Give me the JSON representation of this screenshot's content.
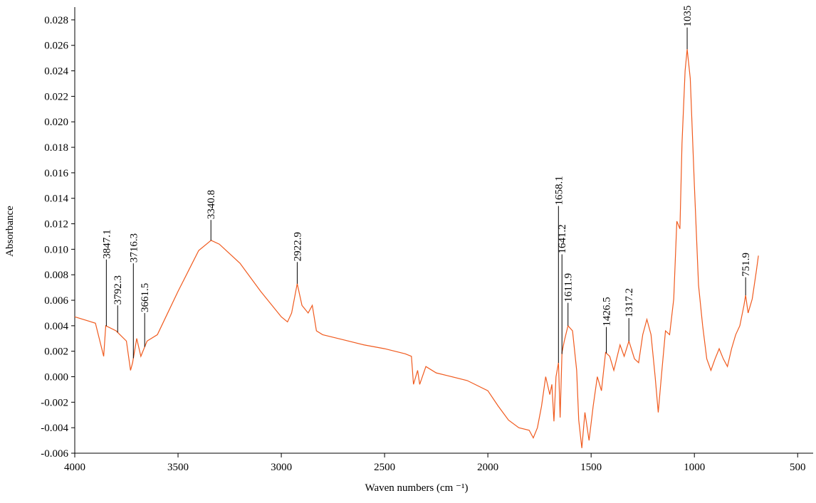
{
  "chart_data": {
    "type": "line",
    "xlabel": "Waven numbers (cm ⁻¹)",
    "ylabel": "Absorbance",
    "xlim": [
      4000,
      425
    ],
    "ylim": [
      -0.006,
      0.029
    ],
    "xticks": [
      4000,
      3500,
      3000,
      2500,
      2000,
      1500,
      1000,
      500
    ],
    "yticks": [
      -0.006,
      -0.004,
      -0.002,
      {
        "value": 0,
        "label": "0.000"
      },
      0.002,
      0.004,
      0.006,
      0.008,
      {
        "value": 0.01,
        "label": "0.010"
      },
      0.012,
      0.014,
      0.016,
      0.018,
      {
        "value": 0.02,
        "label": "0.020"
      },
      0.022,
      0.024,
      0.026,
      0.028
    ],
    "series": [
      {
        "color": "#f05a1e",
        "x": [
          4000,
          3900,
          3860,
          3850,
          3800,
          3750,
          3730,
          3720,
          3700,
          3680,
          3650,
          3600,
          3550,
          3500,
          3450,
          3400,
          3340,
          3300,
          3200,
          3100,
          3000,
          2970,
          2950,
          2923,
          2900,
          2870,
          2850,
          2830,
          2800,
          2700,
          2600,
          2500,
          2400,
          2370,
          2360,
          2340,
          2330,
          2300,
          2250,
          2200,
          2100,
          2000,
          1950,
          1900,
          1850,
          1800,
          1780,
          1760,
          1740,
          1720,
          1700,
          1690,
          1680,
          1670,
          1658,
          1650,
          1641,
          1630,
          1612,
          1590,
          1570,
          1560,
          1545,
          1530,
          1510,
          1490,
          1470,
          1450,
          1430,
          1410,
          1390,
          1360,
          1340,
          1317,
          1290,
          1270,
          1250,
          1230,
          1210,
          1190,
          1175,
          1160,
          1140,
          1120,
          1100,
          1085,
          1070,
          1060,
          1045,
          1035,
          1020,
          1000,
          980,
          960,
          940,
          920,
          900,
          880,
          860,
          840,
          820,
          800,
          780,
          760,
          752,
          740,
          720,
          710,
          700,
          690
        ],
        "values": [
          0.0047,
          0.0042,
          0.0016,
          0.004,
          0.0036,
          0.0028,
          0.0005,
          0.0011,
          0.003,
          0.0016,
          0.0028,
          0.0033,
          0.005,
          0.0067,
          0.0083,
          0.0099,
          0.0107,
          0.0104,
          0.0089,
          0.0067,
          0.0047,
          0.0043,
          0.005,
          0.0073,
          0.0056,
          0.005,
          0.0056,
          0.0036,
          0.0033,
          0.0029,
          0.0025,
          0.0022,
          0.0018,
          0.0016,
          -0.0006,
          0.0005,
          -0.0006,
          0.0008,
          0.0003,
          0.0001,
          -0.0003,
          -0.0011,
          -0.0023,
          -0.0034,
          -0.004,
          -0.0042,
          -0.0048,
          -0.004,
          -0.0023,
          0.0,
          -0.0014,
          -0.0006,
          -0.0035,
          0.0,
          0.0011,
          -0.0032,
          0.0019,
          0.0028,
          0.004,
          0.0036,
          0.0005,
          -0.0034,
          -0.0056,
          -0.0028,
          -0.005,
          -0.0023,
          0.0,
          -0.0011,
          0.0019,
          0.0016,
          0.0005,
          0.0025,
          0.0016,
          0.0028,
          0.0014,
          0.0011,
          0.0033,
          0.0045,
          0.0033,
          0.0,
          -0.0028,
          0.0,
          0.0036,
          0.0033,
          0.0061,
          0.0122,
          0.0116,
          0.0183,
          0.024,
          0.0257,
          0.0234,
          0.015,
          0.0072,
          0.004,
          0.0014,
          0.0005,
          0.0014,
          0.0022,
          0.0014,
          0.0008,
          0.0022,
          0.0033,
          0.004,
          0.0056,
          0.0064,
          0.005,
          0.0061,
          0.0072,
          0.0083,
          0.0095
        ]
      }
    ],
    "annotations": [
      {
        "x": 3847.1,
        "y": 0.0092
      },
      {
        "x": 3792.3,
        "y": 0.0056
      },
      {
        "x": 3716.3,
        "y": 0.0089
      },
      {
        "x": 3661.5,
        "y": 0.005
      },
      {
        "x": 3340.8,
        "y": 0.0123
      },
      {
        "x": 2922.9,
        "y": 0.009
      },
      {
        "x": 1658.1,
        "y": 0.0134
      },
      {
        "x": 1641.2,
        "y": 0.0096
      },
      {
        "x": 1611.9,
        "y": 0.0058
      },
      {
        "x": 1426.5,
        "y": 0.0039
      },
      {
        "x": 1317.2,
        "y": 0.0046
      },
      {
        "x": 1035,
        "y": 0.0274
      },
      {
        "x": 751.9,
        "y": 0.0078
      }
    ]
  }
}
